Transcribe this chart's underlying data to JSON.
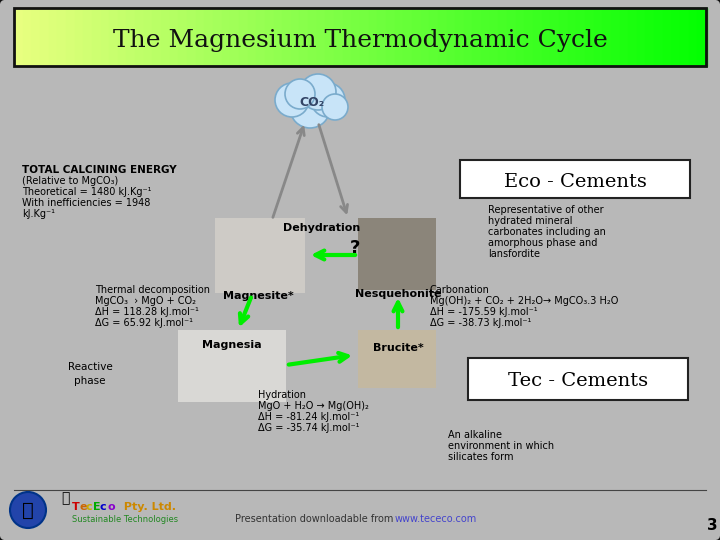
{
  "title": "The Magnesium Thermodynamic Cycle",
  "title_bg_left": "#e8ff80",
  "title_bg_right": "#00ff00",
  "slide_bg": "#a8a8a8",
  "slide_inner_bg": "#b8b8b8",
  "border_color": "#111111",
  "title_color": "#111111",
  "eco_cements_label": "Eco - Cements",
  "tec_cements_label": "Tec - Cements",
  "total_calcining_title": "TOTAL CALCINING ENERGY",
  "total_calcining_lines": [
    "(Relative to MgCO₃)",
    "Theoretical = 1480 kJ.Kg⁻¹",
    "With inefficiencies = 1948",
    "kJ.Kg⁻¹"
  ],
  "thermal_decomp_lines": [
    "Thermal decomposition",
    "MgCO₃  › MgO + CO₂",
    "ΔH = 118.28 kJ.mol⁻¹",
    "ΔG = 65.92 kJ.mol⁻¹"
  ],
  "carbonation_lines": [
    "Carbonation",
    "Mg(OH)₂ + CO₂ + 2H₂O→ MgCO₃.3 H₂O",
    "ΔH = -175.59 kJ.mol⁻¹",
    "ΔG = -38.73 kJ.mol⁻¹"
  ],
  "hydration_lines": [
    "Hydration",
    "MgO + H₂O → Mg(OH)₂",
    "ΔH = -81.24 kJ.mol⁻¹",
    "ΔG = -35.74 kJ.mol⁻¹"
  ],
  "representative_lines": [
    "Representative of other",
    "hydrated mineral",
    "carbonates including an",
    "amorphous phase and",
    "lansfordite"
  ],
  "alkaline_lines": [
    "An alkaline",
    "environment in which",
    "silicates form"
  ],
  "reactive_phase": "Reactive\nphase",
  "dehydration_label": "Dehydration",
  "question_mark": "?",
  "co2_label": "CO₂",
  "magnesite_label": "Magnesite*",
  "nesquehonite_label": "Nesquehonite",
  "magnesia_label": "Magnesia",
  "brucite_label": "Brucite*",
  "footer_left": "Presentation downloadable from",
  "footer_url": "www.tececo.com",
  "page_number": "3",
  "green_arrow": "#00ee00",
  "gray_arrow": "#888888",
  "cloud_circles": [
    [
      310,
      108,
      20
    ],
    [
      328,
      100,
      17
    ],
    [
      292,
      100,
      17
    ],
    [
      318,
      92,
      18
    ],
    [
      300,
      94,
      15
    ],
    [
      335,
      107,
      13
    ]
  ],
  "cloud_color": "#c8e4f8",
  "cloud_edge": "#7aabcc"
}
